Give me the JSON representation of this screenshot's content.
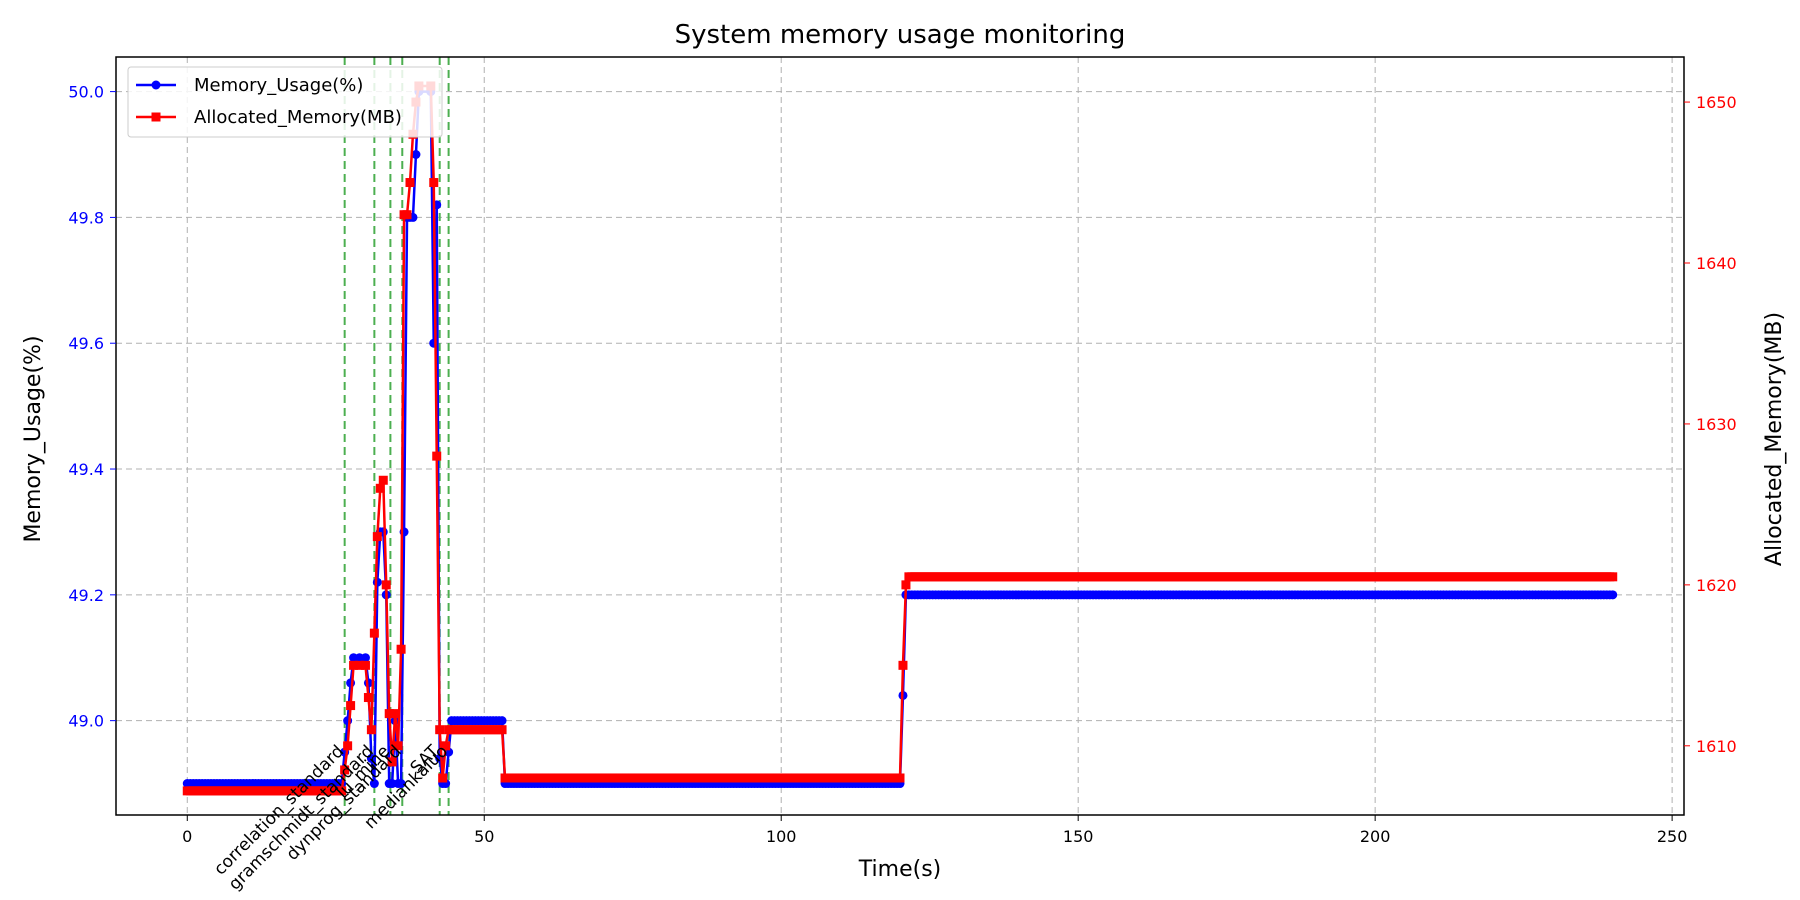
{
  "chart_data": {
    "type": "line",
    "title": "System memory usage monitoring",
    "xlabel": "Time(s)",
    "ylabel_left": "Memory_Usage(%)",
    "ylabel_right": "Allocated_Memory(MB)",
    "xlim": [
      -12,
      252
    ],
    "ylim_left": [
      48.85,
      50.055
    ],
    "ylim_right": [
      1605.7,
      1652.8
    ],
    "x_ticks": [
      "0",
      "50",
      "100",
      "150",
      "200",
      "250"
    ],
    "y_left_ticks": [
      "49.0",
      "49.2",
      "49.4",
      "49.6",
      "49.8",
      "50.0"
    ],
    "y_right_ticks": [
      "1610",
      "1620",
      "1630",
      "1640",
      "1650"
    ],
    "grid": true,
    "legend_position": "top-left",
    "colors": {
      "left_series": "#0000ff",
      "right_series": "#ff0000",
      "event_line": "#4caf50"
    },
    "series": [
      {
        "name": "Memory_Usage(%)",
        "axis": "left",
        "marker": "circle",
        "color": "#0000ff",
        "points": [
          [
            0,
            48.9
          ],
          [
            26,
            48.9
          ],
          [
            26.5,
            48.95
          ],
          [
            27,
            49.0
          ],
          [
            27.5,
            49.06
          ],
          [
            28,
            49.1
          ],
          [
            29,
            49.1
          ],
          [
            30,
            49.1
          ],
          [
            30.5,
            49.06
          ],
          [
            31,
            48.94
          ],
          [
            31.5,
            48.9
          ],
          [
            32,
            49.22
          ],
          [
            32.5,
            49.3
          ],
          [
            33,
            49.3
          ],
          [
            33.5,
            49.2
          ],
          [
            34,
            48.9
          ],
          [
            34.5,
            48.9
          ],
          [
            35,
            49.0
          ],
          [
            35.5,
            48.9
          ],
          [
            36,
            48.9
          ],
          [
            36.5,
            49.3
          ],
          [
            37,
            49.8
          ],
          [
            37.5,
            49.8
          ],
          [
            38,
            49.8
          ],
          [
            38.5,
            49.9
          ],
          [
            39,
            50.0
          ],
          [
            41,
            50.0
          ],
          [
            41.5,
            49.6
          ],
          [
            42,
            49.82
          ],
          [
            42.5,
            48.94
          ],
          [
            43,
            48.9
          ],
          [
            43.5,
            48.9
          ],
          [
            44,
            48.95
          ],
          [
            44.5,
            49.0
          ],
          [
            53,
            49.0
          ],
          [
            53.5,
            48.9
          ],
          [
            120,
            48.9
          ],
          [
            120.5,
            49.04
          ],
          [
            121,
            49.2
          ],
          [
            240,
            49.2
          ]
        ]
      },
      {
        "name": "Allocated_Memory(MB)",
        "axis": "right",
        "marker": "square",
        "color": "#ff0000",
        "points": [
          [
            0,
            1607.2
          ],
          [
            26,
            1607.2
          ],
          [
            26.5,
            1608.5
          ],
          [
            27,
            1610
          ],
          [
            27.5,
            1612.5
          ],
          [
            28,
            1615
          ],
          [
            29,
            1615
          ],
          [
            30,
            1615
          ],
          [
            30.5,
            1613
          ],
          [
            31,
            1611
          ],
          [
            31.5,
            1617
          ],
          [
            32,
            1623
          ],
          [
            32.5,
            1626
          ],
          [
            33,
            1626.5
          ],
          [
            33.5,
            1620
          ],
          [
            34,
            1612
          ],
          [
            34.5,
            1609
          ],
          [
            35,
            1612
          ],
          [
            35.5,
            1610
          ],
          [
            36,
            1616
          ],
          [
            36.5,
            1643
          ],
          [
            37,
            1643
          ],
          [
            37.5,
            1645
          ],
          [
            38,
            1648
          ],
          [
            38.5,
            1650
          ],
          [
            39,
            1651
          ],
          [
            41,
            1651
          ],
          [
            41.5,
            1645
          ],
          [
            42,
            1628
          ],
          [
            42.5,
            1611
          ],
          [
            43,
            1608
          ],
          [
            43.5,
            1610
          ],
          [
            44,
            1611
          ],
          [
            53,
            1611
          ],
          [
            53.5,
            1608
          ],
          [
            120,
            1608
          ],
          [
            120.5,
            1615
          ],
          [
            121,
            1620
          ],
          [
            121.5,
            1620.5
          ],
          [
            240,
            1620.5
          ]
        ]
      }
    ],
    "event_markers": [
      {
        "label": "correlation_standard",
        "x": 26.5
      },
      {
        "label": "gramschmidt_standard",
        "x": 31.5
      },
      {
        "label": "lu_mine",
        "x": 34.2
      },
      {
        "label": "dynprog_standard",
        "x": 36.2
      },
      {
        "label": "SAT",
        "x": 42.5
      },
      {
        "label": "mediankaluo",
        "x": 44
      }
    ]
  }
}
